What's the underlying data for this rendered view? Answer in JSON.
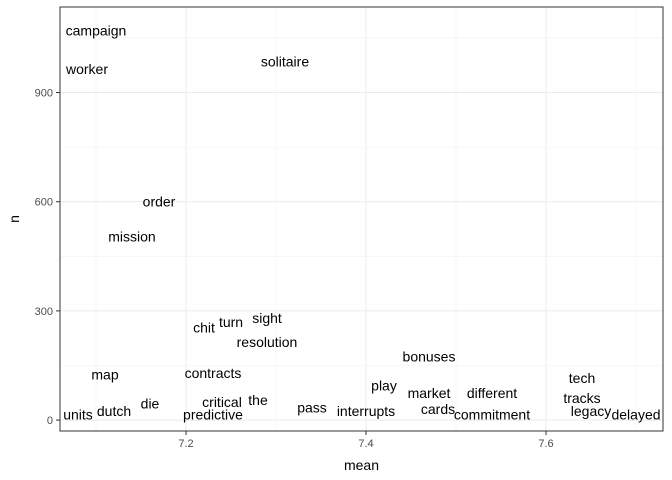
{
  "chart_data": {
    "type": "scatter",
    "mark": "text",
    "xlabel": "mean",
    "ylabel": "n",
    "xlim": [
      7.06,
      7.73
    ],
    "ylim": [
      -30,
      1135
    ],
    "x_ticks": [
      7.2,
      7.4,
      7.6
    ],
    "y_ticks": [
      0,
      300,
      600,
      900
    ],
    "grid": true,
    "theme": "bw",
    "points": [
      {
        "label": "campaign",
        "x": 7.1,
        "y": 1070
      },
      {
        "label": "worker",
        "x": 7.09,
        "y": 965
      },
      {
        "label": "solitaire",
        "x": 7.31,
        "y": 985
      },
      {
        "label": "order",
        "x": 7.17,
        "y": 600
      },
      {
        "label": "mission",
        "x": 7.14,
        "y": 505
      },
      {
        "label": "sight",
        "x": 7.29,
        "y": 280
      },
      {
        "label": "turn",
        "x": 7.25,
        "y": 270
      },
      {
        "label": "chit",
        "x": 7.22,
        "y": 255
      },
      {
        "label": "resolution",
        "x": 7.29,
        "y": 215
      },
      {
        "label": "bonuses",
        "x": 7.47,
        "y": 175
      },
      {
        "label": "map",
        "x": 7.11,
        "y": 125
      },
      {
        "label": "contracts",
        "x": 7.23,
        "y": 130
      },
      {
        "label": "tech",
        "x": 7.64,
        "y": 115
      },
      {
        "label": "play",
        "x": 7.42,
        "y": 95
      },
      {
        "label": "market",
        "x": 7.47,
        "y": 75
      },
      {
        "label": "different",
        "x": 7.54,
        "y": 75
      },
      {
        "label": "tracks",
        "x": 7.64,
        "y": 60
      },
      {
        "label": "critical",
        "x": 7.24,
        "y": 50
      },
      {
        "label": "the",
        "x": 7.28,
        "y": 55
      },
      {
        "label": "die",
        "x": 7.16,
        "y": 45
      },
      {
        "label": "pass",
        "x": 7.34,
        "y": 35
      },
      {
        "label": "cards",
        "x": 7.48,
        "y": 30
      },
      {
        "label": "legacy",
        "x": 7.65,
        "y": 25
      },
      {
        "label": "interrupts",
        "x": 7.4,
        "y": 25
      },
      {
        "label": "dutch",
        "x": 7.12,
        "y": 25
      },
      {
        "label": "predictive",
        "x": 7.23,
        "y": 15
      },
      {
        "label": "commitment",
        "x": 7.54,
        "y": 15
      },
      {
        "label": "delayed",
        "x": 7.7,
        "y": 15
      },
      {
        "label": "units",
        "x": 7.08,
        "y": 15
      }
    ]
  }
}
